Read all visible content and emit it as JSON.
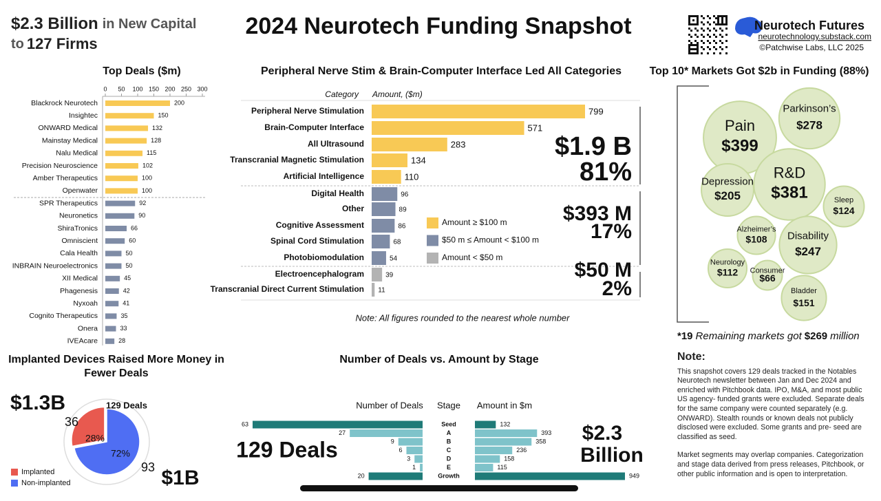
{
  "header": {
    "headline": "$2.3 Billion",
    "headline_suffix": "in New Capital",
    "subline_prefix": "to",
    "subline": "127 Firms",
    "title": "2024 Neurotech Funding Snapshot",
    "brand": "Neurotech Futures",
    "url": "neurotechnology.substack.com",
    "copyright": "©Patchwise Labs, LLC 2025"
  },
  "chart_data": [
    {
      "type": "hbar",
      "title": "Top Deals ($m)",
      "categories": [
        "Blackrock Neurotech",
        "Insightec",
        "ONWARD Medical",
        "Mainstay Medical",
        "Nalu Medical",
        "Precision Neuroscience",
        "Amber Therapeutics",
        "Openwater",
        "SPR Therapeutics",
        "Neuronetics",
        "ShiraTronics",
        "Omniscient",
        "Cala Health",
        "INBRAIN Neuroelectronics",
        "XII Medical",
        "Phagenesis",
        "Nyxoah",
        "Cognito Therapeutics",
        "Onera",
        "IVEAcare"
      ],
      "values": [
        200,
        150,
        132,
        128,
        115,
        102,
        100,
        100,
        92,
        90,
        66,
        60,
        50,
        50,
        45,
        42,
        41,
        35,
        33,
        28
      ],
      "colors": [
        "#f8c955",
        "#f8c955",
        "#f8c955",
        "#f8c955",
        "#f8c955",
        "#f8c955",
        "#f8c955",
        "#f8c955",
        "#7f8ca6",
        "#7f8ca6",
        "#7f8ca6",
        "#7f8ca6",
        "#7f8ca6",
        "#7f8ca6",
        "#7f8ca6",
        "#7f8ca6",
        "#7f8ca6",
        "#7f8ca6",
        "#7f8ca6",
        "#7f8ca6"
      ],
      "xlim": [
        0,
        300
      ],
      "xticks": [
        0,
        50,
        100,
        150,
        200,
        250,
        300
      ]
    },
    {
      "type": "category-bar",
      "title": "Peripheral Nerve Stim & Brain-Computer Interface Led All Categories",
      "column_headers": [
        "Category",
        "Amount,  ($m)"
      ],
      "categories": [
        "Peripheral Nerve Stimulation",
        "Brain-Computer Interface",
        "All Ultrasound",
        "Transcranial Magnetic Stimulation",
        "Artificial Intelligence",
        "Digital Health",
        "Other",
        "Cognitive Assessment",
        "Spinal Cord Stimulation",
        "Photobiomodulation",
        "Electroencephalogram",
        "Transcranial Direct Current Stimulation"
      ],
      "values": [
        799,
        571,
        283,
        134,
        110,
        96,
        89,
        86,
        68,
        54,
        39,
        11
      ],
      "colors": [
        "#f8c955",
        "#f8c955",
        "#f8c955",
        "#f8c955",
        "#f8c955",
        "#7f8ca6",
        "#7f8ca6",
        "#7f8ca6",
        "#7f8ca6",
        "#7f8ca6",
        "#b3b3b3",
        "#b3b3b3"
      ],
      "legend": [
        {
          "label": "Amount  ≥  $100 m",
          "color": "#f8c955"
        },
        {
          "label": "$50 m ≤  Amount  <  $100 m",
          "color": "#7f8ca6"
        },
        {
          "label": "Amount  <  $50 m",
          "color": "#b3b3b3"
        }
      ],
      "groups": [
        {
          "amount": "$1.9 B",
          "share": "81%"
        },
        {
          "amount": "$393 M",
          "share": "17%"
        },
        {
          "amount": "$50 M",
          "share": "2%"
        }
      ],
      "note": "Note: All figures rounded to the nearest whole number"
    },
    {
      "type": "bubble",
      "title": "Top 10* Markets Got $2b in Funding (88%)",
      "categories": [
        "Pain",
        "Parkinson’s",
        "R&D",
        "Depression",
        "Sleep",
        "Alzheimer’s",
        "Disability",
        "Neurology",
        "Consumer",
        "Bladder"
      ],
      "values": [
        399,
        278,
        381,
        205,
        124,
        108,
        247,
        112,
        66,
        151
      ],
      "value_labels": [
        "$399",
        "$278",
        "$381",
        "$205",
        "$124",
        "$108",
        "$247",
        "$112",
        "$66",
        "$151"
      ],
      "color": "#dfe9c6",
      "footnote": {
        "count": "*19",
        "text": "Remaining markets got",
        "amount": "$269",
        "unit": "million"
      }
    },
    {
      "type": "pie",
      "title": "Implanted Devices Raised More Money in Fewer Deals",
      "categories": [
        "Implanted",
        "Non-implanted"
      ],
      "values": [
        28,
        72
      ],
      "value_labels": [
        "28%",
        "72%"
      ],
      "colors": [
        "#e8594f",
        "#4f6ef3"
      ],
      "deal_counts": [
        36,
        93
      ],
      "amount_labels": [
        "$1.3B",
        "$1B"
      ],
      "total_label": "129 Deals"
    },
    {
      "type": "stage",
      "title": "Number of Deals vs. Amount by Stage",
      "categories": [
        "Seed",
        "A",
        "B",
        "C",
        "D",
        "E",
        "Growth"
      ],
      "stage_header": "Stage",
      "series": [
        {
          "name": "Number of Deals",
          "values": [
            63,
            27,
            9,
            6,
            3,
            1,
            20
          ]
        },
        {
          "name": "Amount in $m",
          "values": [
            132,
            393,
            358,
            236,
            158,
            115,
            949
          ]
        }
      ],
      "colors": [
        "#1f7b78",
        "#7fc3ca",
        "#7fc3ca",
        "#7fc3ca",
        "#7fc3ca",
        "#7fc3ca",
        "#1f7b78"
      ],
      "deals_total": "129 Deals",
      "amount_total": [
        "$2.3",
        "Billion"
      ]
    }
  ],
  "note": {
    "title": "Note:",
    "paragraphs": [
      "This snapshot covers 129 deals tracked in the Notables Neurotech newsletter between Jan and Dec 2024 and enriched with Pitchbook data. IPO, M&A, and most public US agency- funded grants were excluded. Separate deals for the same company were counted separately (e.g. ONWARD). Stealth rounds or known deals not publicly disclosed were excluded. Some grants and pre- seed are classified as seed.",
      "Market segments may overlap companies. Categorization and stage data derived from press releases, Pitchbook, or other public information and is open to interpretation."
    ]
  }
}
